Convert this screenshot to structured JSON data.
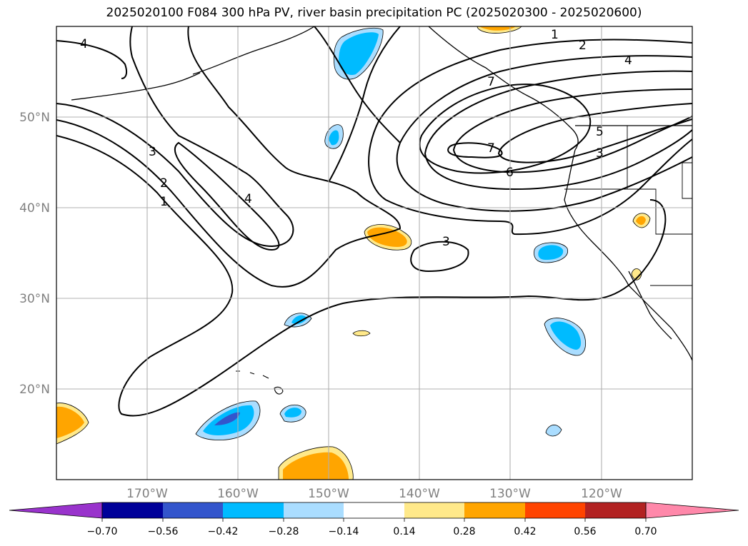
{
  "title": "2025020100 F084 300 hPa PV, river basin precipitation PC (2025020300 - 2025020600)",
  "map": {
    "lon_range": [
      -180,
      -110
    ],
    "lat_range": [
      10,
      60
    ],
    "lat_ticks": [
      {
        "v": 20,
        "label": "20°N"
      },
      {
        "v": 30,
        "label": "30°N"
      },
      {
        "v": 40,
        "label": "40°N"
      },
      {
        "v": 50,
        "label": "50°N"
      }
    ],
    "lon_ticks": [
      {
        "v": -170,
        "label": "170°W"
      },
      {
        "v": -160,
        "label": "160°W"
      },
      {
        "v": -150,
        "label": "150°W"
      },
      {
        "v": -140,
        "label": "140°W"
      },
      {
        "v": -130,
        "label": "130°W"
      },
      {
        "v": -120,
        "label": "120°W"
      }
    ],
    "grid": true,
    "gridline_color": "#b0b0b0",
    "coastline_color": "#000000"
  },
  "colorbar": {
    "labels": [
      "−0.70",
      "−0.56",
      "−0.42",
      "−0.28",
      "−0.14",
      "0.14",
      "0.28",
      "0.42",
      "0.56",
      "0.70"
    ],
    "under_color": "#9933cc",
    "over_color": "#ff88aa",
    "colors": [
      "#000099",
      "#3355cc",
      "#00bbff",
      "#aaddff",
      "#ffffff",
      "#ffe98a",
      "#ffa500",
      "#ff4400",
      "#b22222"
    ]
  },
  "pv_contour_labels": [
    "4",
    "3",
    "2",
    "1",
    "4",
    "1",
    "2",
    "4",
    "7",
    "6",
    "7",
    "5",
    "3",
    "3"
  ],
  "regions": [
    {
      "name": "alaska-blue-blob",
      "color": "#00bbff"
    },
    {
      "name": "mid-pacific-orange-blob",
      "color": "#ffa500"
    },
    {
      "name": "hawaii-blue-blob",
      "color": "#00bbff"
    },
    {
      "name": "hawaii-dark-blue-core",
      "color": "#3355cc"
    },
    {
      "name": "south-orange-blob",
      "color": "#ffa500"
    },
    {
      "name": "west-orange-blob",
      "color": "#ffa500"
    }
  ]
}
